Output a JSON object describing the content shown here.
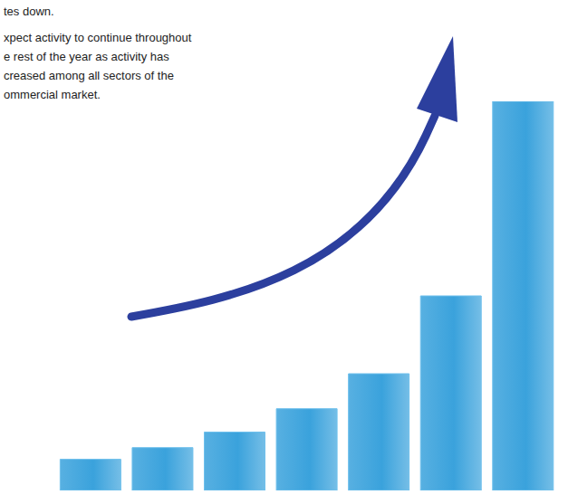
{
  "chart_data": {
    "type": "bar",
    "annotations": [
      "tes down.",
      "xpect activity to continue throughout",
      "e rest of the year as activity has",
      "creased among all sectors of the",
      "ommercial market."
    ],
    "categories": [
      null,
      null,
      null,
      null,
      null,
      null,
      null
    ],
    "values": [
      8,
      11,
      15,
      21,
      30,
      50,
      100
    ],
    "color": "#3aa2dc",
    "ylim": [
      0,
      100
    ],
    "grid": false,
    "tick_labels": false
  }
}
